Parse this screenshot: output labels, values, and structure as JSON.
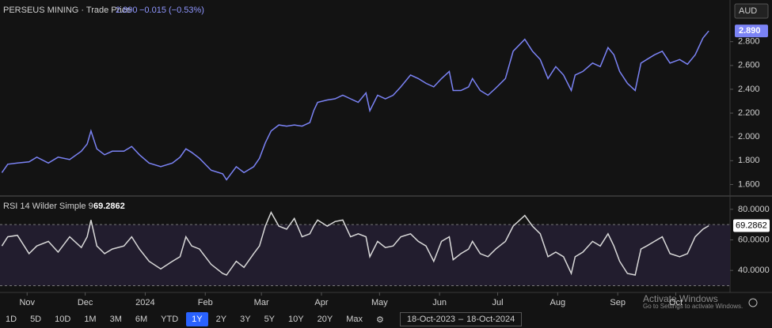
{
  "currency": "AUD",
  "chart_data": [
    {
      "type": "line",
      "title": "PERSEUS MINING · Trade Price",
      "change": "−0.015 (−0.53%)",
      "last_value_label": "2.890",
      "color": "#7b83f5",
      "xlim": [
        0,
        377
      ],
      "ylim": [
        1.51,
        3.15
      ],
      "yticks": [
        {
          "value": 1.6,
          "label": "1.600"
        },
        {
          "value": 1.8,
          "label": "1.800"
        },
        {
          "value": 2.0,
          "label": "2.000"
        },
        {
          "value": 2.2,
          "label": "2.200"
        },
        {
          "value": 2.4,
          "label": "2.400"
        },
        {
          "value": 2.6,
          "label": "2.600"
        },
        {
          "value": 2.8,
          "label": "2.800"
        }
      ],
      "x": [
        1,
        4,
        9,
        15,
        19,
        25,
        30,
        36,
        42,
        45,
        47,
        50,
        54,
        58,
        64,
        68,
        72,
        77,
        83,
        89,
        93,
        96,
        99,
        103,
        109,
        115,
        117,
        122,
        126,
        131,
        134,
        137,
        140,
        144,
        148,
        152,
        156,
        160,
        162,
        164,
        169,
        173,
        177,
        181,
        185,
        189,
        191,
        195,
        199,
        203,
        207,
        212,
        216,
        220,
        224,
        228,
        232,
        234,
        238,
        242,
        244,
        248,
        252,
        256,
        261,
        265,
        271,
        275,
        279,
        283,
        287,
        291,
        295,
        297,
        301,
        306,
        310,
        314,
        317,
        320,
        324,
        328,
        331,
        334,
        338,
        342,
        346,
        351,
        355,
        359,
        363,
        366
      ],
      "values": [
        1.7,
        1.77,
        1.78,
        1.79,
        1.83,
        1.78,
        1.83,
        1.81,
        1.88,
        1.94,
        2.05,
        1.9,
        1.85,
        1.88,
        1.88,
        1.92,
        1.85,
        1.78,
        1.75,
        1.78,
        1.83,
        1.9,
        1.87,
        1.82,
        1.72,
        1.69,
        1.64,
        1.75,
        1.7,
        1.75,
        1.82,
        1.95,
        2.05,
        2.1,
        2.09,
        2.1,
        2.09,
        2.12,
        2.22,
        2.29,
        2.31,
        2.32,
        2.35,
        2.32,
        2.29,
        2.37,
        2.22,
        2.35,
        2.32,
        2.35,
        2.42,
        2.52,
        2.49,
        2.45,
        2.42,
        2.49,
        2.55,
        2.39,
        2.39,
        2.42,
        2.49,
        2.39,
        2.35,
        2.41,
        2.49,
        2.72,
        2.82,
        2.72,
        2.65,
        2.49,
        2.59,
        2.52,
        2.39,
        2.52,
        2.55,
        2.62,
        2.59,
        2.75,
        2.69,
        2.55,
        2.45,
        2.39,
        2.62,
        2.65,
        2.69,
        2.72,
        2.62,
        2.65,
        2.61,
        2.69,
        2.83,
        2.89
      ]
    },
    {
      "type": "line",
      "title": "RSI 14 Wilder Simple 9",
      "color": "#d9d9d9",
      "reference_lines": [
        30,
        70
      ],
      "xlim": [
        0,
        377
      ],
      "ylim": [
        25.6,
        88.2
      ],
      "yticks": [
        {
          "value": 40,
          "label": "40.0000"
        },
        {
          "value": 60,
          "label": "60.0000"
        },
        {
          "value": 80,
          "label": "80.0000"
        }
      ],
      "xticks": [
        {
          "value": 14,
          "label": "Nov"
        },
        {
          "value": 44,
          "label": "Dec"
        },
        {
          "value": 75,
          "label": "2024"
        },
        {
          "value": 106,
          "label": "Feb"
        },
        {
          "value": 135,
          "label": "Mar"
        },
        {
          "value": 166,
          "label": "Apr"
        },
        {
          "value": 196,
          "label": "May"
        },
        {
          "value": 227,
          "label": "Jun"
        },
        {
          "value": 257,
          "label": "Jul"
        },
        {
          "value": 288,
          "label": "Aug"
        },
        {
          "value": 319,
          "label": "Sep"
        },
        {
          "value": 349,
          "label": "Oct"
        }
      ],
      "x": [
        1,
        4,
        9,
        15,
        19,
        25,
        30,
        36,
        42,
        45,
        47,
        50,
        54,
        58,
        64,
        68,
        72,
        77,
        83,
        89,
        93,
        96,
        99,
        103,
        109,
        115,
        117,
        122,
        126,
        131,
        134,
        137,
        140,
        144,
        148,
        152,
        156,
        160,
        162,
        164,
        169,
        173,
        177,
        181,
        185,
        189,
        191,
        195,
        199,
        203,
        207,
        212,
        216,
        220,
        224,
        228,
        232,
        234,
        238,
        242,
        244,
        248,
        252,
        256,
        261,
        265,
        271,
        275,
        279,
        283,
        287,
        291,
        295,
        297,
        301,
        306,
        310,
        314,
        317,
        320,
        324,
        328,
        331,
        334,
        338,
        342,
        346,
        351,
        355,
        359,
        363,
        366
      ],
      "values": [
        56,
        62,
        63,
        51,
        56,
        59,
        52,
        62,
        55,
        62,
        73,
        56,
        51,
        54,
        56,
        62,
        54,
        46,
        41,
        46,
        49,
        62,
        56,
        54,
        44,
        38,
        37,
        46,
        42,
        51,
        56,
        69,
        78,
        69,
        67,
        74,
        62,
        64,
        69,
        73,
        69,
        72,
        73,
        62,
        64,
        62,
        49,
        59,
        55,
        56,
        62,
        64,
        59,
        56,
        46,
        59,
        62,
        47,
        51,
        54,
        59,
        51,
        49,
        54,
        59,
        69,
        76,
        69,
        64,
        49,
        52,
        49,
        38,
        49,
        52,
        59,
        56,
        64,
        56,
        46,
        38,
        37,
        54,
        56,
        59,
        62,
        51,
        49,
        51,
        62,
        67,
        69.2862
      ]
    }
  ],
  "toolbar": {
    "ranges": [
      "1D",
      "5D",
      "10D",
      "1M",
      "3M",
      "6M",
      "YTD",
      "1Y",
      "2Y",
      "3Y",
      "5Y",
      "10Y",
      "20Y",
      "Max"
    ],
    "active": "1Y",
    "start": "18-Oct-2023",
    "separator": "–",
    "end": "18-Oct-2024"
  },
  "watermark": {
    "title": "Activate Windows",
    "text": "Go to Settings to activate Windows."
  }
}
